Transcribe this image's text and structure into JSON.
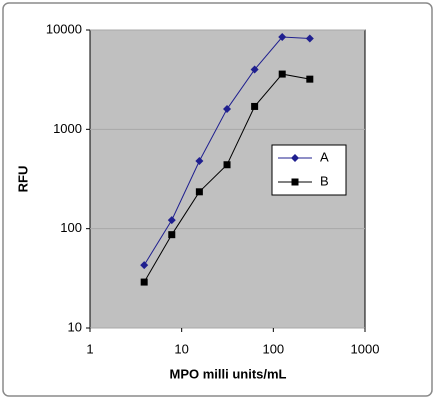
{
  "chart_data": {
    "type": "line",
    "x_label": "MPO milli units/mL",
    "y_label": "RFU",
    "x": [
      3.9,
      7.8,
      15.6,
      31.25,
      62.5,
      125,
      250
    ],
    "series": [
      {
        "name": "A",
        "color": "#1f1f8f",
        "marker": "diamond",
        "values": [
          43,
          122,
          480,
          1600,
          4000,
          8500,
          8200
        ]
      },
      {
        "name": "B",
        "color": "#000000",
        "marker": "square",
        "values": [
          29,
          87,
          235,
          440,
          1700,
          3600,
          3200
        ]
      }
    ],
    "xlim": [
      1,
      1000
    ],
    "ylim": [
      10,
      10000
    ],
    "xticks": [
      1,
      10,
      100,
      1000
    ],
    "yticks": [
      10,
      100,
      1000,
      10000
    ],
    "xscale": "log",
    "yscale": "log",
    "grid": true,
    "legend": "right"
  }
}
